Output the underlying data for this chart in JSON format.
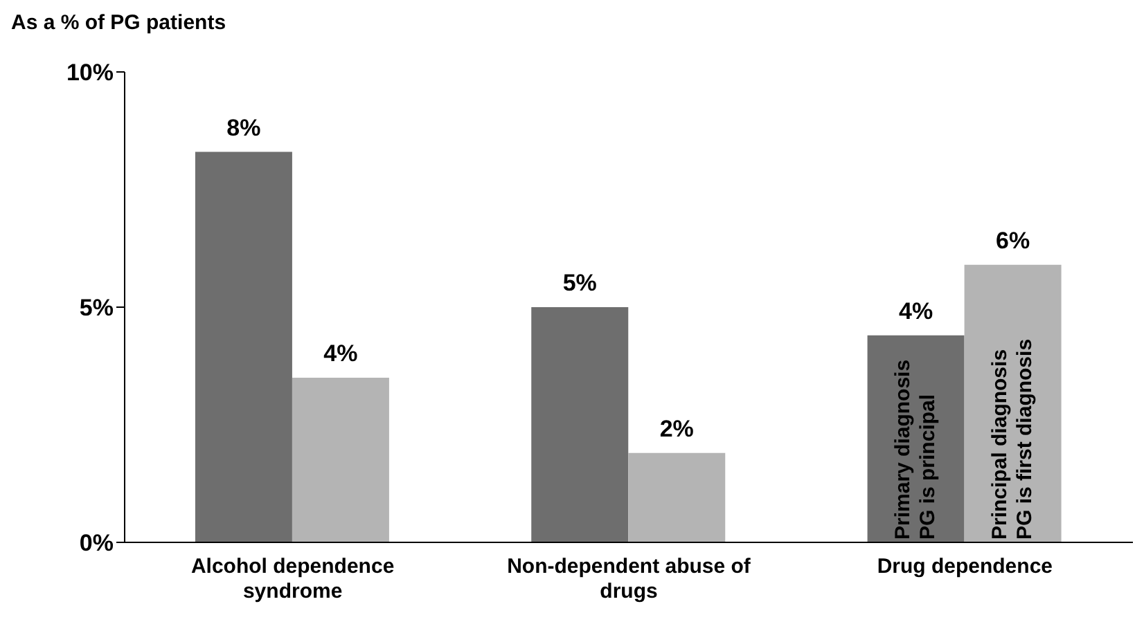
{
  "chart_data": {
    "type": "bar",
    "ylabel": "As a % of PG patients",
    "categories": [
      "Alcohol dependence syndrome",
      "Non-dependent abuse of drugs",
      "Drug dependence"
    ],
    "series": [
      {
        "name": "Primary diagnosis PG is principal",
        "color": "#6e6e6e",
        "values": [
          8.3,
          5.0,
          4.4
        ],
        "value_labels": [
          "8%",
          "5%",
          "4%"
        ]
      },
      {
        "name": "Principal diagnosis PG is first diagnosis",
        "color": "#b4b4b4",
        "values": [
          3.5,
          1.9,
          5.9
        ],
        "value_labels": [
          "4%",
          "2%",
          "6%"
        ]
      }
    ],
    "ylim": [
      0,
      10
    ],
    "yticks": [
      {
        "value": 0,
        "label": "0%"
      },
      {
        "value": 5,
        "label": "5%"
      },
      {
        "value": 10,
        "label": "10%"
      }
    ]
  }
}
